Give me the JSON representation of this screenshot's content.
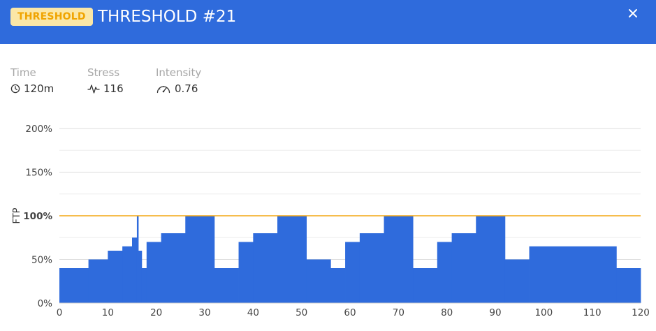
{
  "header": {
    "badge": "THRESHOLD",
    "title": "THRESHOLD #21",
    "close_icon": "close-icon",
    "colors": {
      "background": "#2f6bdc",
      "badge_bg": "#fbe7a7",
      "badge_text": "#f0a400"
    }
  },
  "stats": [
    {
      "label": "Time",
      "value": "120m",
      "icon": "clock-icon"
    },
    {
      "label": "Stress",
      "value": "116",
      "icon": "pulse-icon"
    },
    {
      "label": "Intensity",
      "value": "0.76",
      "icon": "gauge-icon"
    }
  ],
  "chart_data": {
    "type": "area",
    "ylabel": "FTP",
    "xlim": [
      0,
      120
    ],
    "ylim": [
      0,
      200
    ],
    "x_ticks": [
      0,
      10,
      20,
      30,
      40,
      50,
      60,
      70,
      80,
      90,
      100,
      110,
      120
    ],
    "y_ticks": [
      {
        "value": 0,
        "label": "0%"
      },
      {
        "value": 50,
        "label": "50%"
      },
      {
        "value": 100,
        "label": "100%",
        "bold": true
      },
      {
        "value": 150,
        "label": "150%"
      },
      {
        "value": 200,
        "label": "200%"
      }
    ],
    "threshold": {
      "value": 100,
      "color": "#f3a712"
    },
    "fill_color": "#2f6bdc",
    "grid": true,
    "segments": [
      {
        "start": 0,
        "end": 6,
        "power": 40
      },
      {
        "start": 6,
        "end": 10,
        "power": 50
      },
      {
        "start": 10,
        "end": 13,
        "power": 60
      },
      {
        "start": 13,
        "end": 15,
        "power": 65
      },
      {
        "start": 15,
        "end": 16,
        "power": 75
      },
      {
        "start": 16,
        "end": 16.3,
        "power": 100
      },
      {
        "start": 16.3,
        "end": 17,
        "power": 60
      },
      {
        "start": 17,
        "end": 18,
        "power": 40
      },
      {
        "start": 18,
        "end": 21,
        "power": 70
      },
      {
        "start": 21,
        "end": 26,
        "power": 80
      },
      {
        "start": 26,
        "end": 32,
        "power": 100
      },
      {
        "start": 32,
        "end": 37,
        "power": 40
      },
      {
        "start": 37,
        "end": 40,
        "power": 70
      },
      {
        "start": 40,
        "end": 45,
        "power": 80
      },
      {
        "start": 45,
        "end": 51,
        "power": 100
      },
      {
        "start": 51,
        "end": 56,
        "power": 50
      },
      {
        "start": 56,
        "end": 59,
        "power": 40
      },
      {
        "start": 59,
        "end": 62,
        "power": 70
      },
      {
        "start": 62,
        "end": 67,
        "power": 80
      },
      {
        "start": 67,
        "end": 73,
        "power": 100
      },
      {
        "start": 73,
        "end": 78,
        "power": 40
      },
      {
        "start": 78,
        "end": 81,
        "power": 70
      },
      {
        "start": 81,
        "end": 86,
        "power": 80
      },
      {
        "start": 86,
        "end": 92,
        "power": 100
      },
      {
        "start": 92,
        "end": 97,
        "power": 50
      },
      {
        "start": 97,
        "end": 115,
        "power": 65
      },
      {
        "start": 115,
        "end": 120,
        "power": 40
      }
    ]
  }
}
